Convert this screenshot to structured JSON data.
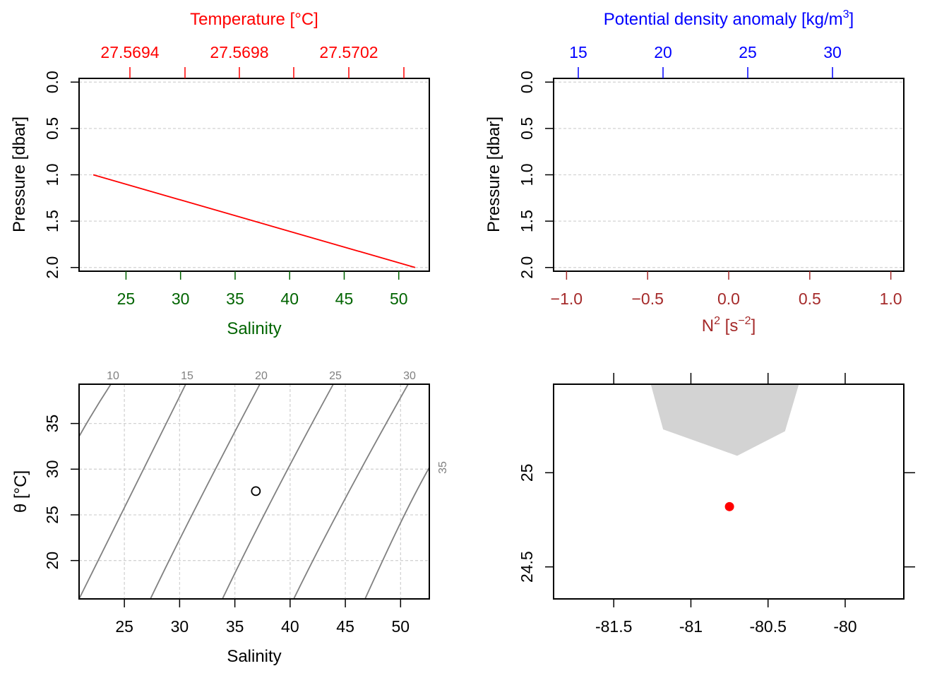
{
  "colors": {
    "temperature": "#FF0000",
    "salinity": "#006400",
    "density": "#0000FF",
    "n2": "#A52A2A",
    "grid": "#D3D3D3",
    "isopycnal": "#808080",
    "coast": "#D3D3D3",
    "station": "#FF0000"
  },
  "chart_data": [
    {
      "id": "profile-ts",
      "type": "line",
      "top_axis_title": "Temperature [°C]",
      "bottom_axis_title": "Salinity",
      "ylabel": "Pressure [dbar]",
      "top_ticks": [
        "27.5694",
        "27.5698",
        "27.5702"
      ],
      "bottom_ticks": [
        "25",
        "30",
        "35",
        "40",
        "45",
        "50"
      ],
      "y_ticks": [
        "0.0",
        "0.5",
        "1.0",
        "1.5",
        "2.0"
      ],
      "xlim": [
        20.7,
        52.8
      ],
      "ylim": [
        2.04,
        -0.04
      ],
      "grid": true,
      "series": [
        {
          "x": [
            22.0,
            51.5
          ],
          "y": [
            1.0,
            2.0
          ]
        }
      ]
    },
    {
      "id": "profile-density",
      "type": "line",
      "top_axis_title": "Potential density anomaly [kg/m",
      "top_axis_title_sup": "3",
      "top_axis_title_end": "]",
      "bottom_axis_title_base": "N",
      "bottom_axis_title_sup": "2",
      "bottom_axis_title_mid": " [s",
      "bottom_axis_title_sup2": "−2",
      "bottom_axis_title_end": "]",
      "ylabel": "Pressure [dbar]",
      "top_ticks": [
        "15",
        "20",
        "25",
        "30"
      ],
      "bottom_ticks": [
        "−1.0",
        "−0.5",
        "0.0",
        "0.5",
        "1.0"
      ],
      "y_ticks": [
        "0.0",
        "0.5",
        "1.0",
        "1.5",
        "2.0"
      ],
      "xlim": [
        -1.08,
        1.08
      ],
      "ylim": [
        2.04,
        -0.04
      ],
      "grid": true,
      "series": []
    },
    {
      "id": "ts-diagram",
      "type": "scatter",
      "xlabel": "Salinity",
      "ylabel": "θ [°C]",
      "x_ticks": [
        "25",
        "30",
        "35",
        "40",
        "45",
        "50"
      ],
      "y_ticks": [
        "20",
        "25",
        "30",
        "35"
      ],
      "xlim": [
        20.9,
        52.6
      ],
      "ylim": [
        15.8,
        39.3
      ],
      "grid": true,
      "isopycnal_labels": [
        "10",
        "15",
        "20",
        "25",
        "30",
        "35"
      ],
      "points": [
        {
          "x": 36.9,
          "y": 27.6
        }
      ]
    },
    {
      "id": "station-map",
      "type": "scatter",
      "x_ticks": [
        "-81.5",
        "-81",
        "-80.5",
        "-80"
      ],
      "y_ticks": [
        "24.5",
        "25"
      ],
      "xlim": [
        -81.89,
        -79.62
      ],
      "ylim": [
        24.33,
        25.47
      ],
      "coast": [
        [
          -81.26,
          25.47
        ],
        [
          -81.18,
          25.23
        ],
        [
          -80.7,
          25.09
        ],
        [
          -80.39,
          25.22
        ],
        [
          -80.3,
          25.47
        ]
      ],
      "points": [
        {
          "x": -80.75,
          "y": 24.82
        }
      ]
    }
  ]
}
